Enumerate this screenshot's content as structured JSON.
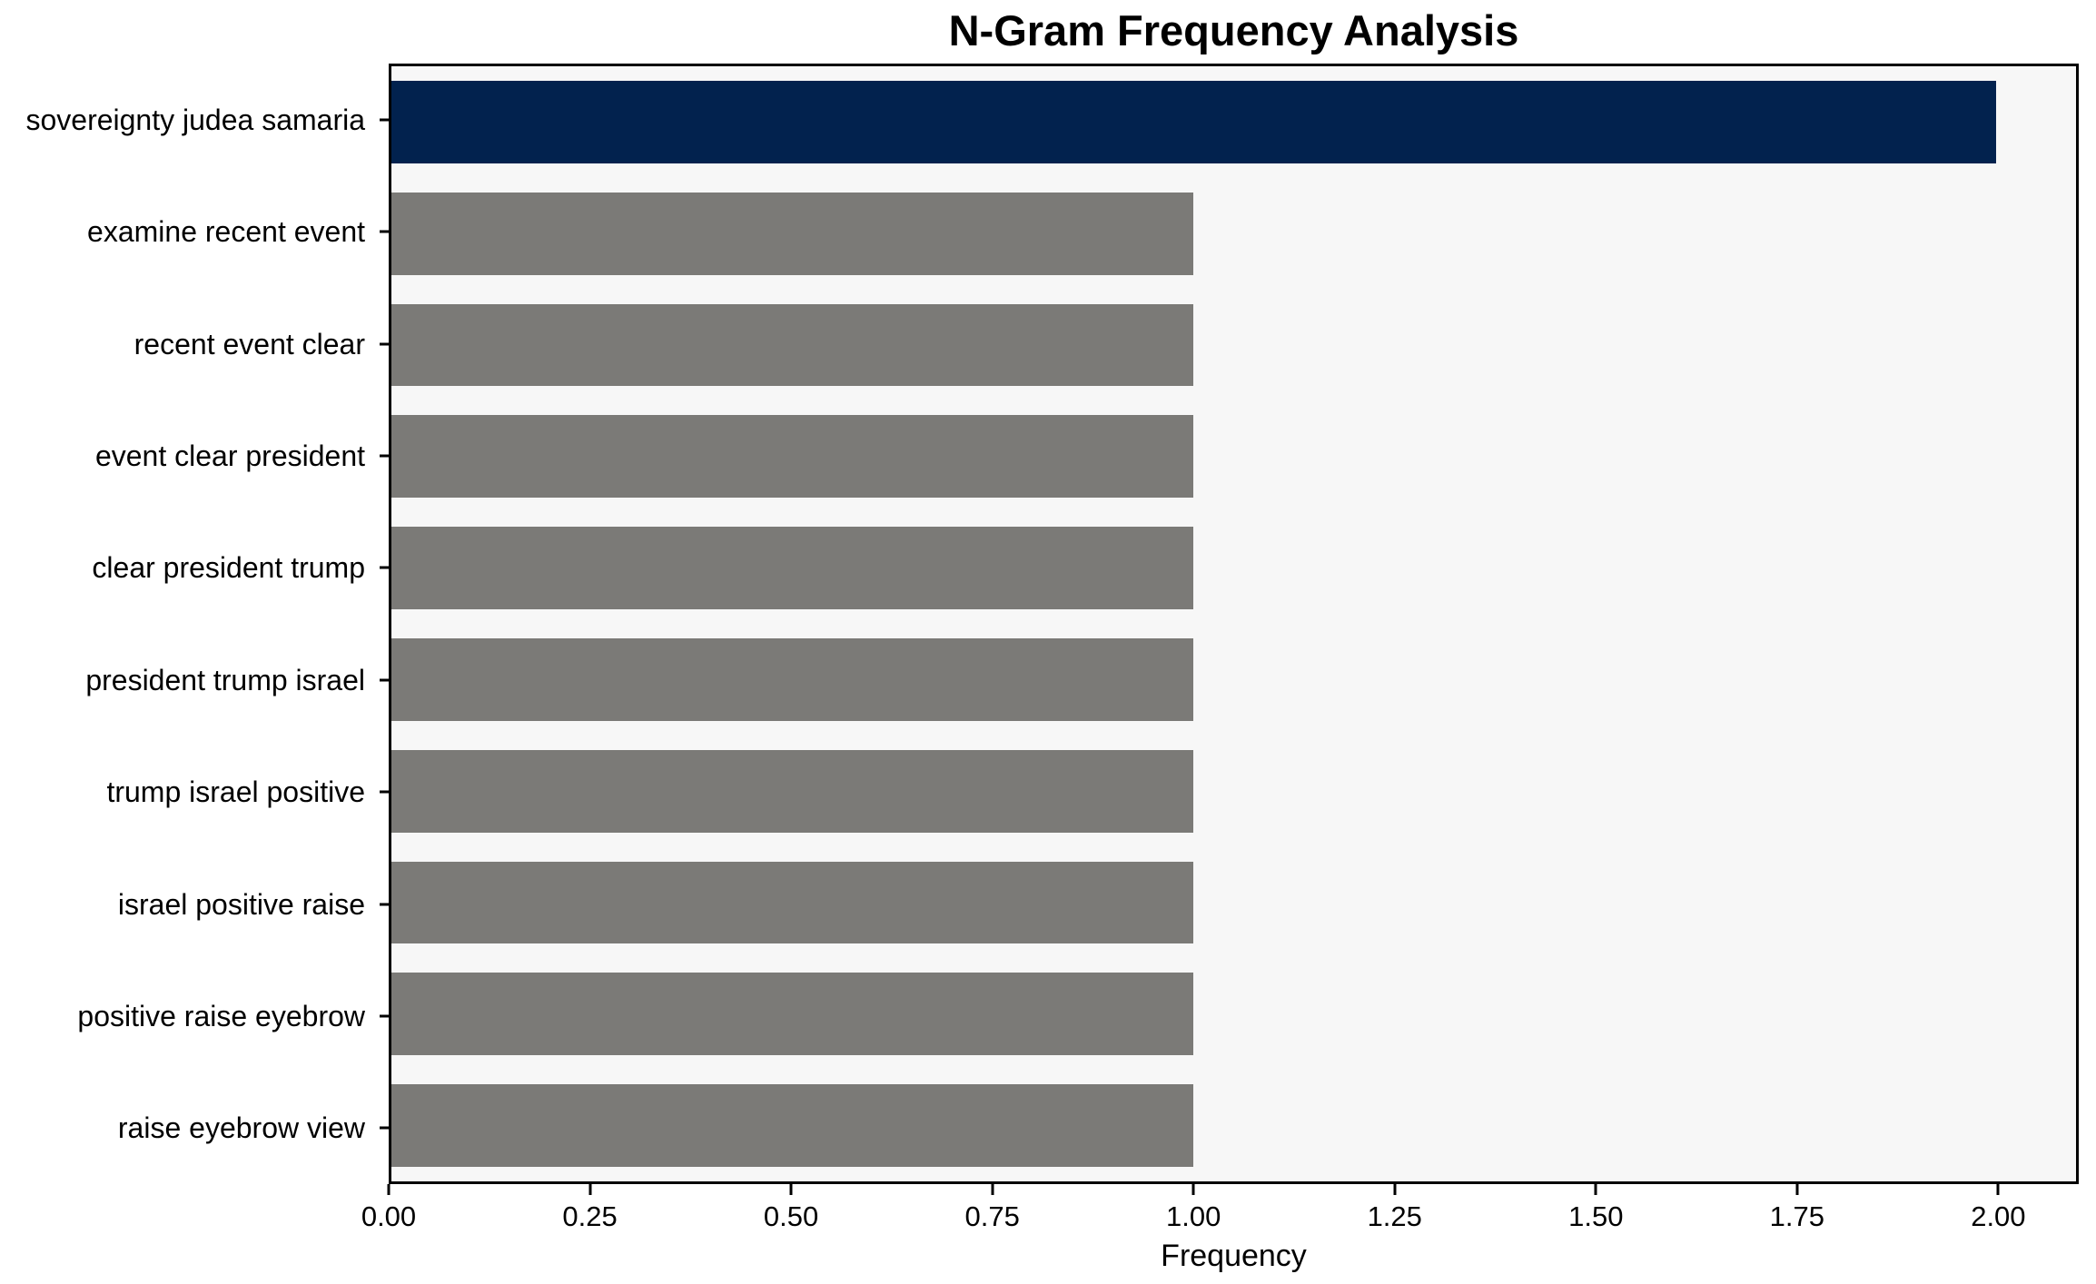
{
  "chart_data": {
    "type": "bar",
    "orientation": "horizontal",
    "title": "N-Gram Frequency Analysis",
    "xlabel": "Frequency",
    "ylabel": "",
    "categories": [
      "sovereignty judea samaria",
      "examine recent event",
      "recent event clear",
      "event clear president",
      "clear president trump",
      "president trump israel",
      "trump israel positive",
      "israel positive raise",
      "positive raise eyebrow",
      "raise eyebrow view"
    ],
    "values": [
      2,
      1,
      1,
      1,
      1,
      1,
      1,
      1,
      1,
      1
    ],
    "bar_colors": [
      "#02224e",
      "#7b7a77",
      "#7b7a77",
      "#7b7a77",
      "#7b7a77",
      "#7b7a77",
      "#7b7a77",
      "#7b7a77",
      "#7b7a77",
      "#7b7a77"
    ],
    "xlim": [
      0,
      2.1
    ],
    "xticks": [
      {
        "value": 0.0,
        "label": "0.00"
      },
      {
        "value": 0.25,
        "label": "0.25"
      },
      {
        "value": 0.5,
        "label": "0.50"
      },
      {
        "value": 0.75,
        "label": "0.75"
      },
      {
        "value": 1.0,
        "label": "1.00"
      },
      {
        "value": 1.25,
        "label": "1.25"
      },
      {
        "value": 1.5,
        "label": "1.50"
      },
      {
        "value": 1.75,
        "label": "1.75"
      },
      {
        "value": 2.0,
        "label": "2.00"
      }
    ],
    "grid": false,
    "legend": null,
    "colors": {
      "highlight_bar": "#02224e",
      "default_bar": "#7b7a77",
      "plot_background": "#f7f7f7",
      "figure_background": "#ffffff",
      "spine": "#000000",
      "text": "#000000"
    }
  }
}
